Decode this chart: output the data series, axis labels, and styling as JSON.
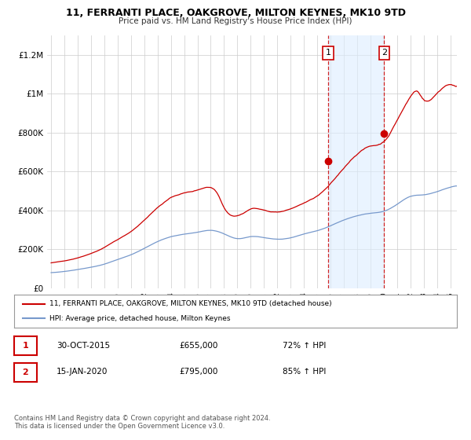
{
  "title": "11, FERRANTI PLACE, OAKGROVE, MILTON KEYNES, MK10 9TD",
  "subtitle": "Price paid vs. HM Land Registry's House Price Index (HPI)",
  "ylim": [
    0,
    1300000
  ],
  "xlim_start": 1994.7,
  "xlim_end": 2025.5,
  "yticks": [
    0,
    200000,
    400000,
    600000,
    800000,
    1000000,
    1200000
  ],
  "ytick_labels": [
    "£0",
    "£200K",
    "£400K",
    "£600K",
    "£800K",
    "£1M",
    "£1.2M"
  ],
  "purchase1_x": 2015.83,
  "purchase1_y": 655000,
  "purchase1_label": "1",
  "purchase2_x": 2020.04,
  "purchase2_y": 795000,
  "purchase2_label": "2",
  "shade_color": "#ddeeff",
  "shade_alpha": 0.6,
  "red_color": "#cc0000",
  "blue_color": "#7799cc",
  "marker_box_color": "#cc0000",
  "footnote": "Contains HM Land Registry data © Crown copyright and database right 2024.\nThis data is licensed under the Open Government Licence v3.0.",
  "legend1": "11, FERRANTI PLACE, OAKGROVE, MILTON KEYNES, MK10 9TD (detached house)",
  "legend2": "HPI: Average price, detached house, Milton Keynes",
  "table_row1": [
    "1",
    "30-OCT-2015",
    "£655,000",
    "72% ↑ HPI"
  ],
  "table_row2": [
    "2",
    "15-JAN-2020",
    "£795,000",
    "85% ↑ HPI"
  ]
}
